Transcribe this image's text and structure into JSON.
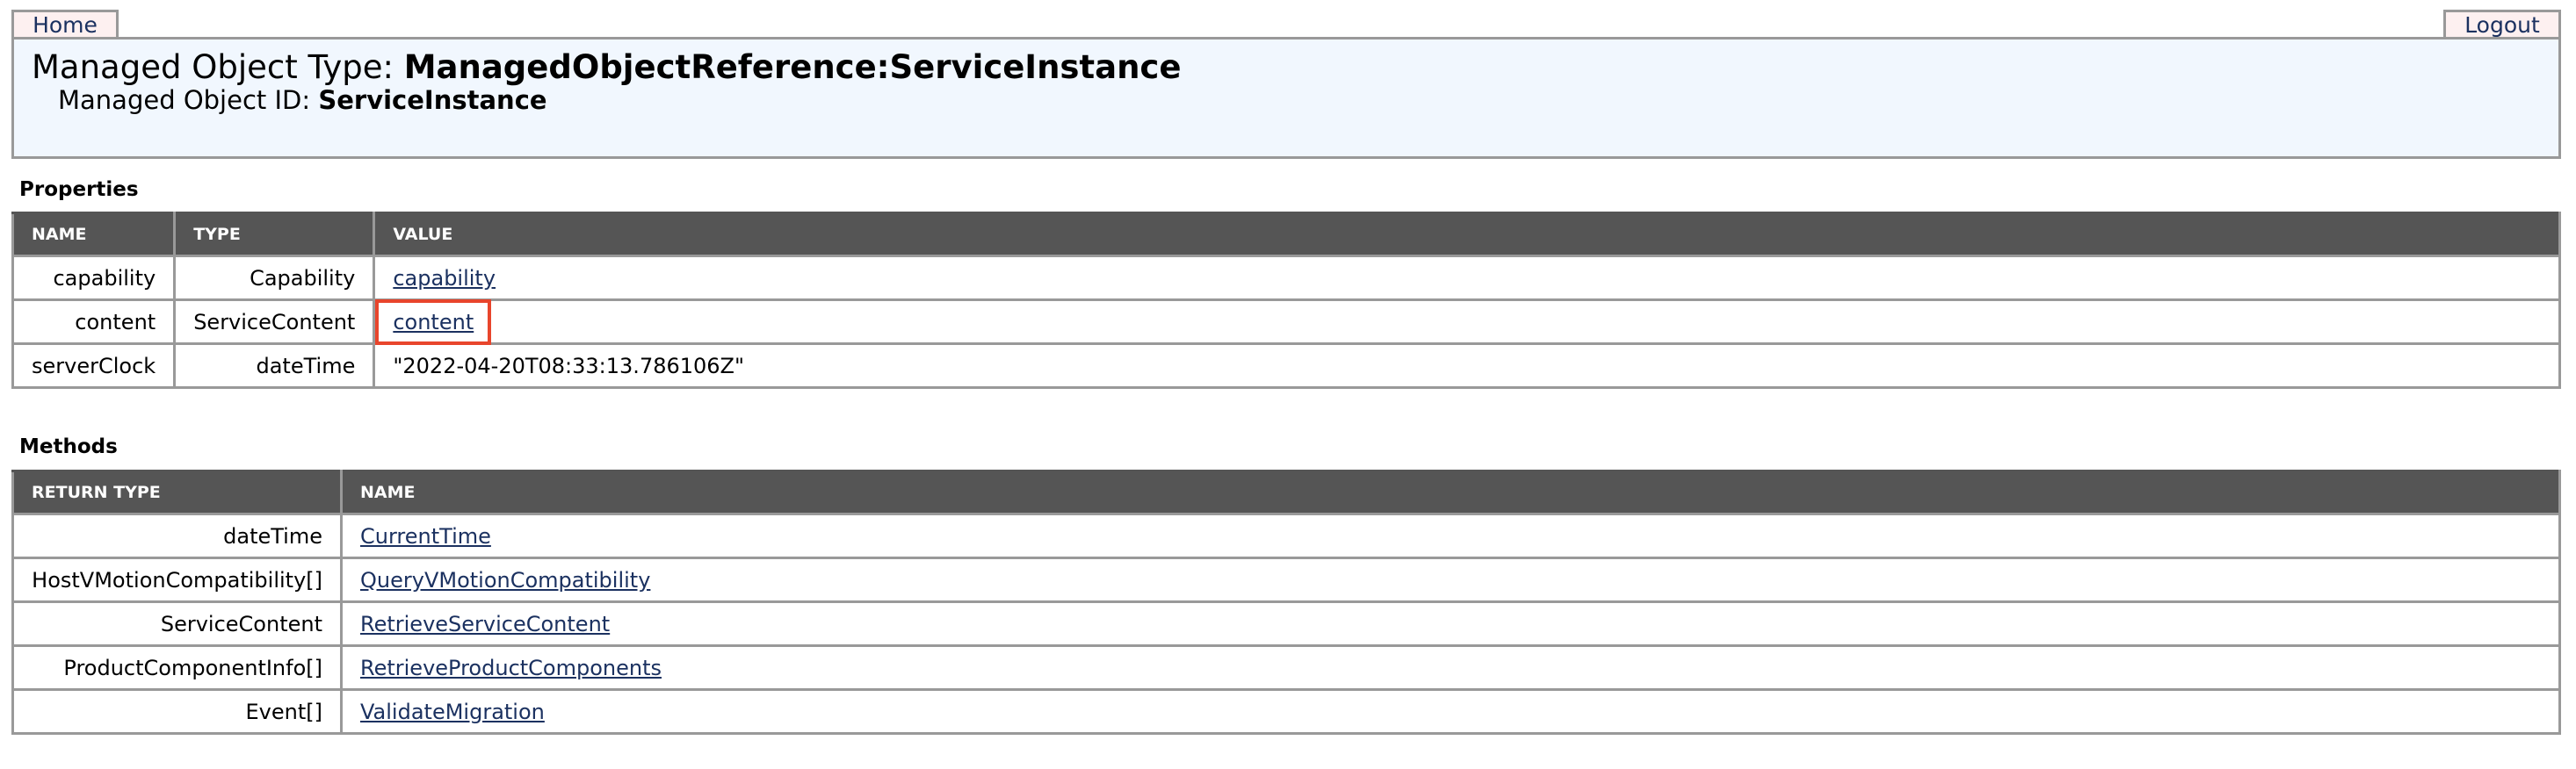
{
  "nav": {
    "home": "Home",
    "logout": "Logout"
  },
  "header": {
    "type_label": "Managed Object Type: ",
    "type_value": "ManagedObjectReference:ServiceInstance",
    "id_label": "Managed Object ID: ",
    "id_value": "ServiceInstance"
  },
  "properties": {
    "title": "Properties",
    "columns": [
      "NAME",
      "TYPE",
      "VALUE"
    ],
    "rows": [
      {
        "name": "capability",
        "type": "Capability",
        "value": "capability",
        "link": true
      },
      {
        "name": "content",
        "type": "ServiceContent",
        "value": "content",
        "link": true,
        "highlighted": true
      },
      {
        "name": "serverClock",
        "type": "dateTime",
        "value": "\"2022-04-20T08:33:13.786106Z\"",
        "link": false
      }
    ]
  },
  "methods": {
    "title": "Methods",
    "columns": [
      "RETURN TYPE",
      "NAME"
    ],
    "rows": [
      {
        "return_type": "dateTime",
        "name": "CurrentTime"
      },
      {
        "return_type": "HostVMotionCompatibility[]",
        "name": "QueryVMotionCompatibility"
      },
      {
        "return_type": "ServiceContent",
        "name": "RetrieveServiceContent"
      },
      {
        "return_type": "ProductComponentInfo[]",
        "name": "RetrieveProductComponents"
      },
      {
        "return_type": "Event[]",
        "name": "ValidateMigration"
      }
    ]
  },
  "colors": {
    "header_bg": "#555555",
    "link": "#1b3160",
    "highlight": "#e8452c",
    "panel_bg": "#f1f7fe"
  }
}
